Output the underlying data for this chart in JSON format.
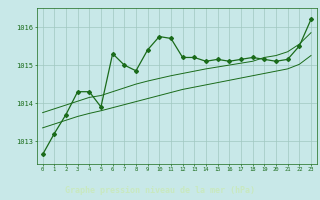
{
  "x": [
    0,
    1,
    2,
    3,
    4,
    5,
    6,
    7,
    8,
    9,
    10,
    11,
    12,
    13,
    14,
    15,
    16,
    17,
    18,
    19,
    20,
    21,
    22,
    23
  ],
  "y_main": [
    1012.65,
    1013.2,
    1013.7,
    1014.3,
    1014.3,
    1013.9,
    1015.3,
    1015.0,
    1014.85,
    1015.4,
    1015.75,
    1015.7,
    1015.2,
    1015.2,
    1015.1,
    1015.15,
    1015.1,
    1015.15,
    1015.2,
    1015.15,
    1015.1,
    1015.15,
    1015.5,
    1016.2
  ],
  "y_trend1": [
    1013.75,
    1013.85,
    1013.95,
    1014.05,
    1014.15,
    1014.2,
    1014.3,
    1014.4,
    1014.5,
    1014.58,
    1014.65,
    1014.72,
    1014.78,
    1014.84,
    1014.9,
    1014.95,
    1015.0,
    1015.05,
    1015.1,
    1015.2,
    1015.25,
    1015.35,
    1015.55,
    1015.85
  ],
  "y_trend2": [
    1013.35,
    1013.45,
    1013.55,
    1013.65,
    1013.73,
    1013.8,
    1013.88,
    1013.96,
    1014.04,
    1014.12,
    1014.2,
    1014.28,
    1014.36,
    1014.42,
    1014.48,
    1014.54,
    1014.6,
    1014.66,
    1014.72,
    1014.78,
    1014.84,
    1014.9,
    1015.02,
    1015.25
  ],
  "bg_color": "#c8e8e8",
  "plot_bg_color": "#c8e8e8",
  "grid_color": "#a0c8c0",
  "line_color": "#1a6b1a",
  "label_bg_color": "#2a5a2a",
  "label_text_color": "#c8e8c0",
  "ylabel_ticks": [
    1013,
    1014,
    1015,
    1016
  ],
  "xlabel_label": "Graphe pression niveau de la mer (hPa)",
  "ylim": [
    1012.4,
    1016.5
  ],
  "xlim": [
    -0.5,
    23.5
  ]
}
